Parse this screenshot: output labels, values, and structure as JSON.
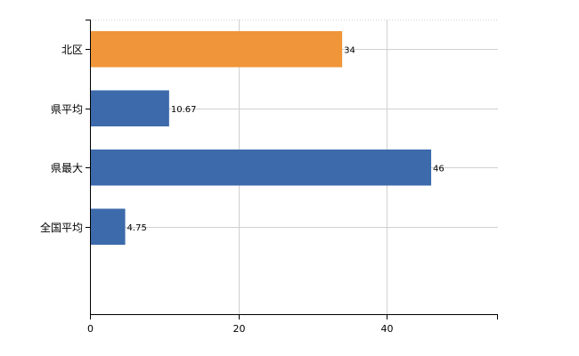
{
  "chart_data": {
    "type": "bar",
    "orientation": "horizontal",
    "categories": [
      "北区",
      "県平均",
      "県最大",
      "全国平均"
    ],
    "values": [
      34,
      10.67,
      46,
      4.75
    ],
    "data_labels": [
      "34",
      "10.67",
      "46",
      "4.75"
    ],
    "highlight_index": 0,
    "colors": {
      "highlight": "#f0953a",
      "default": "#3c6aab",
      "grid": "#d0d0d0",
      "axis": "#000000"
    },
    "xlim": [
      0,
      55
    ],
    "x_ticks": [
      0,
      20,
      40
    ],
    "x_tick_labels": [
      "0",
      "20",
      "40"
    ],
    "grid": true,
    "legend": "none",
    "title": "",
    "xlabel": "",
    "ylabel": ""
  }
}
